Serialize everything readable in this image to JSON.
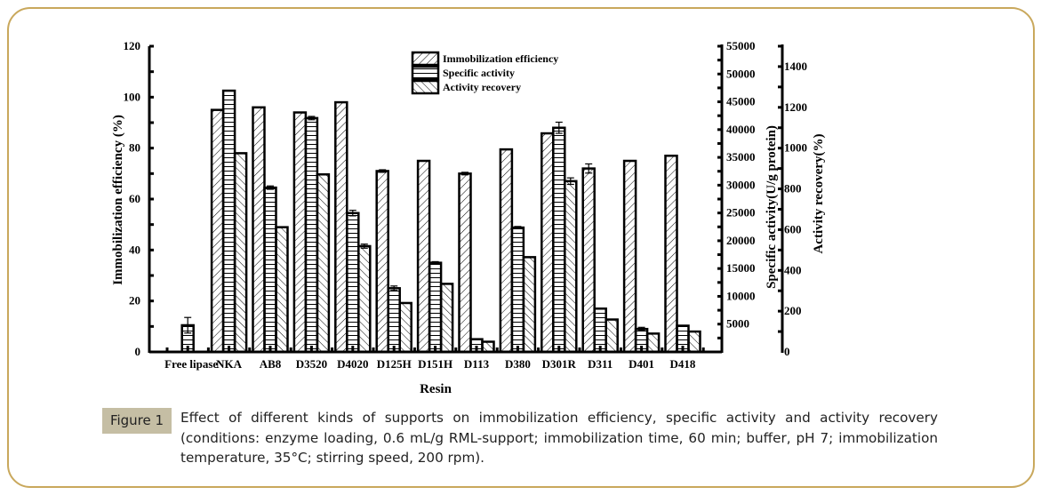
{
  "chart_data": {
    "type": "bar",
    "xlabel": "Resin",
    "ylabel": "Immobilization efficiency (%)",
    "y2label": "Specific activity(U/g protein)",
    "y3label": "Activity recovery(%)",
    "ylim": [
      0,
      120
    ],
    "y2lim": [
      0,
      55000
    ],
    "y3lim": [
      0,
      1500
    ],
    "yticks": [
      0,
      20,
      40,
      60,
      80,
      100,
      120
    ],
    "y2ticks": [
      5000,
      10000,
      15000,
      20000,
      25000,
      30000,
      35000,
      40000,
      45000,
      50000,
      55000
    ],
    "y3ticks": [
      0,
      200,
      400,
      600,
      800,
      1000,
      1200,
      1400
    ],
    "legend_position": "top-center",
    "grid": false,
    "categories": [
      "Free lipase",
      "NKA",
      "AB8",
      "D3520",
      "D4020",
      "D125H",
      "D151H",
      "D113",
      "D380",
      "D301R",
      "D311",
      "D401",
      "D418"
    ],
    "series": [
      {
        "name": "Immobilization efficiency",
        "axis": "left",
        "pattern": "forward-hatch",
        "values": [
          0,
          95,
          96,
          94,
          98,
          71,
          75,
          70,
          79.5,
          85.8,
          72,
          75,
          77
        ],
        "errors": [
          0,
          0,
          0,
          0,
          0,
          0.5,
          0,
          0.5,
          0,
          0,
          1.8,
          0,
          0
        ]
      },
      {
        "name": "Specific activity",
        "axis": "right1",
        "pattern": "horizontal-lines",
        "values": [
          4800,
          47000,
          29560,
          42070,
          24980,
          11460,
          16040,
          2290,
          22370,
          40330,
          7790,
          4125,
          4720
        ],
        "errors": [
          1400,
          0,
          300,
          300,
          500,
          400,
          200,
          0,
          200,
          1000,
          0,
          300,
          0
        ]
      },
      {
        "name": "Activity recovery",
        "axis": "right2",
        "pattern": "back-hatch",
        "values": [
          0,
          975,
          612,
          871,
          519,
          240,
          334,
          50,
          465,
          838,
          159,
          90,
          100
        ],
        "errors": [
          0,
          0,
          0,
          0,
          10,
          0,
          0,
          0,
          0,
          16,
          0,
          0,
          0
        ]
      }
    ]
  },
  "figure": {
    "label": "Figure 1",
    "caption": "Effect of different kinds of supports on immobilization efficiency, specific activity and activity recovery (conditions: enzyme loading, 0.6 mL/g RML-support; immobilization time, 60 min; buffer, pH 7; immobilization temperature, 35°C; stirring speed, 200 rpm)."
  },
  "colors": {
    "frame": "#c9a85c",
    "label_bg": "#c5bea4",
    "ink": "#000000"
  }
}
